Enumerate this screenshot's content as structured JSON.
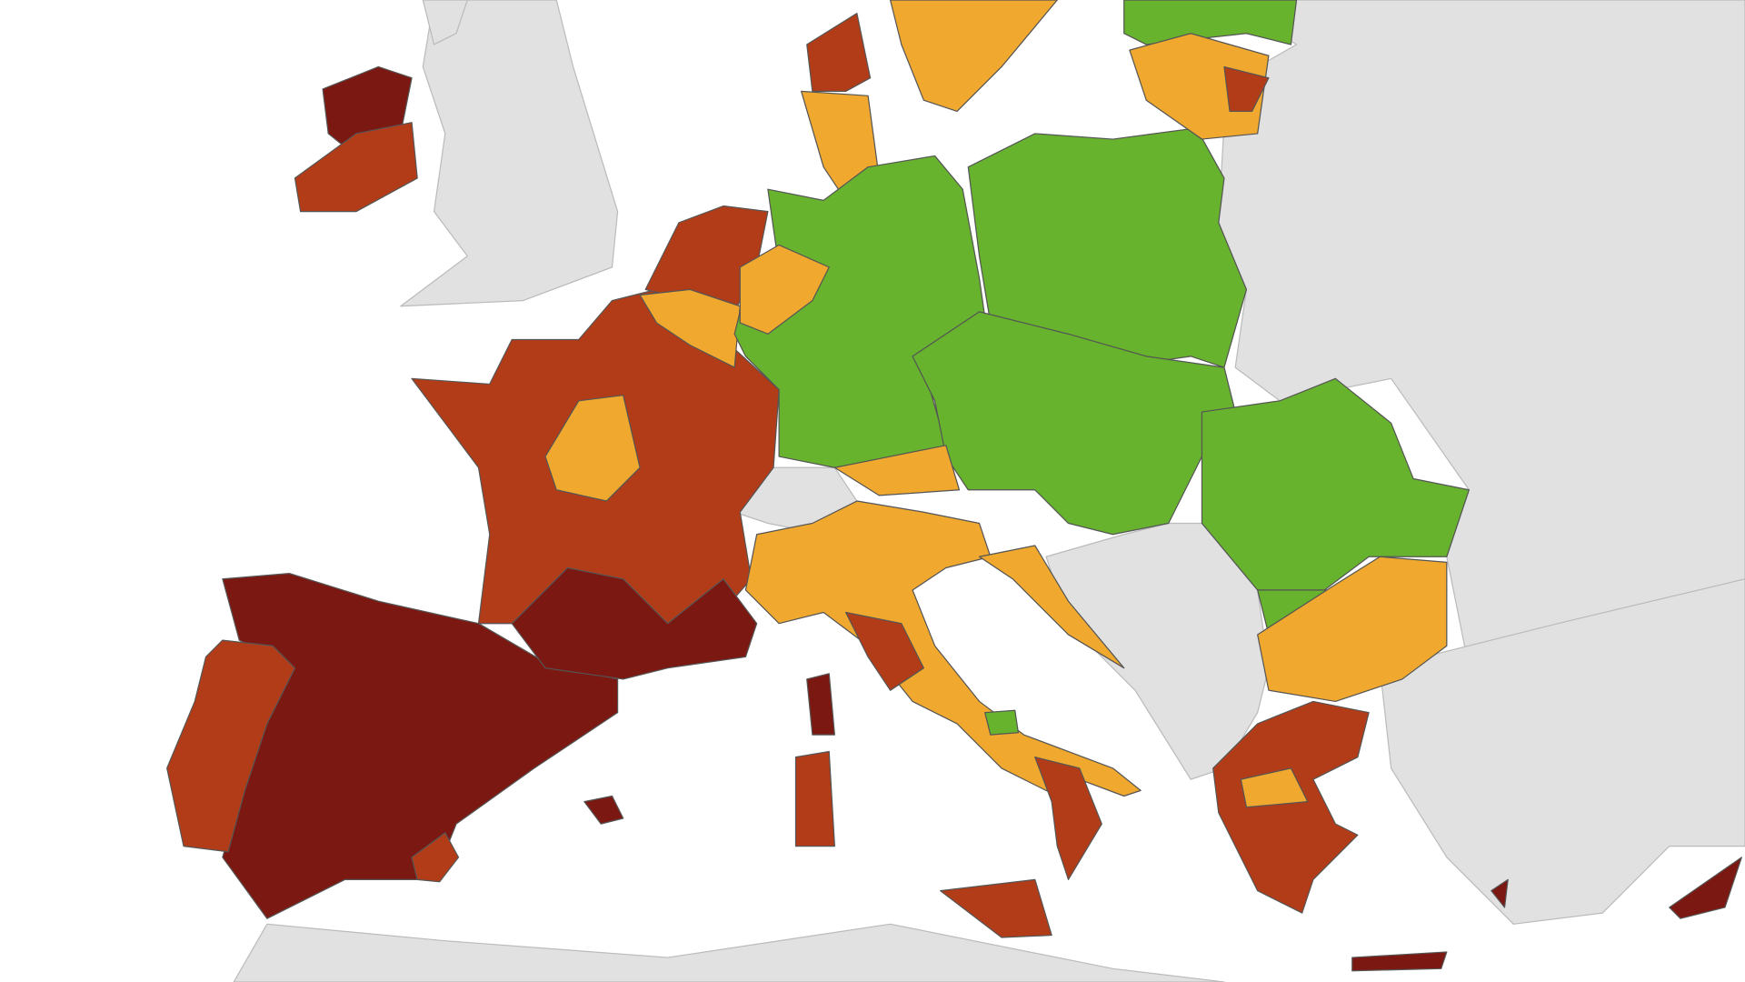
{
  "map": {
    "colors": {
      "sea": "#ffffff",
      "other": "#e1e1e1",
      "dark-red": "#7b1811",
      "red": "#b33c18",
      "orange": "#f0a92e",
      "green": "#67b32d"
    }
  }
}
